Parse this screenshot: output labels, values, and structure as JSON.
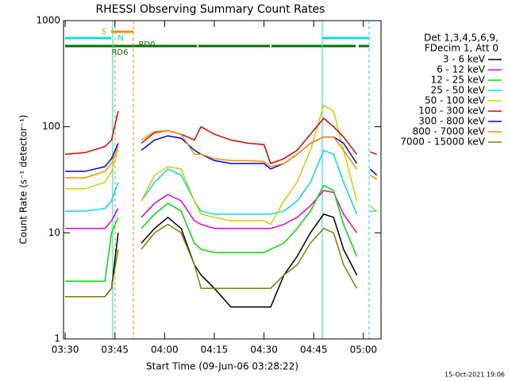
{
  "chart_data": {
    "type": "line",
    "title": "RHESSI Observing Summary Count Rates",
    "xlabel": "Start Time (09-Jun-06 03:28:22)",
    "ylabel": "Count Rate (s⁻¹ detector⁻¹)",
    "legend_title": [
      "Det 1,3,4,5,6,9,",
      "FDecim 1, Att 0"
    ],
    "annotations": [
      "S",
      "N",
      "RD6",
      "RD0"
    ],
    "footer": "15-Oct-2021 19:06",
    "log_y": true,
    "ylim": [
      1,
      1000
    ],
    "yticks": [
      1,
      10,
      100,
      1000
    ],
    "xlim": [
      29.5,
      125.3
    ],
    "xticks": [
      {
        "value": 30,
        "label": "03:30"
      },
      {
        "value": 45,
        "label": "03:45"
      },
      {
        "value": 60,
        "label": "04:00"
      },
      {
        "value": 75,
        "label": "04:15"
      },
      {
        "value": 90,
        "label": "04:30"
      },
      {
        "value": 105,
        "label": "04:45"
      },
      {
        "value": 120,
        "label": "05:00"
      }
    ],
    "x": [
      30,
      36,
      42,
      44,
      46,
      48,
      53,
      57,
      61,
      65,
      69,
      71,
      75,
      80,
      85,
      90,
      92,
      96,
      100,
      104,
      108,
      111,
      114,
      118,
      120,
      122,
      124
    ],
    "series": [
      {
        "name": "3 - 6 keV",
        "color": "#000000",
        "values": [
          2.5,
          2.5,
          2.5,
          3,
          10,
          null,
          8,
          11,
          14,
          11,
          5,
          4,
          3,
          2,
          2,
          2,
          2,
          4,
          6,
          10,
          15,
          14,
          7,
          4,
          null,
          null,
          null
        ]
      },
      {
        "name": "6 - 12 keV",
        "color": "#e000e0",
        "values": [
          11,
          11,
          11,
          13,
          17,
          null,
          14,
          19,
          23,
          20,
          13,
          12,
          11,
          11,
          11,
          11,
          11,
          12,
          14,
          18,
          25,
          24,
          15,
          10,
          null,
          null,
          null
        ]
      },
      {
        "name": "12 - 25 keV",
        "color": "#00e000",
        "values": [
          3.5,
          3.5,
          3.5,
          10,
          14,
          null,
          11,
          15,
          19,
          16,
          8,
          7,
          6.5,
          6.5,
          6.5,
          6.5,
          7,
          8,
          11,
          16,
          28,
          25,
          12,
          6,
          null,
          null,
          null
        ]
      },
      {
        "name": "25 - 50 keV",
        "color": "#00e0e0",
        "values": [
          16,
          16,
          17,
          20,
          30,
          null,
          20,
          30,
          40,
          35,
          20,
          16,
          15,
          15,
          15,
          15,
          15,
          16,
          20,
          30,
          60,
          55,
          30,
          15,
          null,
          16,
          16
        ]
      },
      {
        "name": "50 - 100 keV",
        "color": "#d0d000",
        "values": [
          26,
          26,
          30,
          38,
          60,
          null,
          20,
          35,
          42,
          40,
          20,
          15,
          14,
          13,
          13,
          13,
          12,
          20,
          30,
          60,
          160,
          140,
          60,
          20,
          null,
          18,
          16
        ]
      },
      {
        "name": "100 - 300 keV",
        "color": "#e00000",
        "values": [
          55,
          57,
          65,
          75,
          140,
          null,
          70,
          88,
          92,
          85,
          75,
          100,
          85,
          75,
          70,
          68,
          45,
          50,
          60,
          85,
          120,
          100,
          80,
          55,
          null,
          58,
          55
        ]
      },
      {
        "name": "300 - 800 keV",
        "color": "#0000e0",
        "values": [
          38,
          38,
          42,
          50,
          70,
          null,
          60,
          75,
          82,
          78,
          60,
          55,
          48,
          45,
          45,
          45,
          40,
          45,
          55,
          70,
          80,
          80,
          70,
          45,
          null,
          40,
          35
        ]
      },
      {
        "name": "800 - 7000 keV",
        "color": "#ff8c00",
        "values": [
          33,
          33,
          38,
          45,
          65,
          null,
          75,
          90,
          92,
          85,
          55,
          55,
          50,
          48,
          48,
          47,
          42,
          45,
          55,
          70,
          80,
          80,
          60,
          40,
          null,
          35,
          32
        ]
      },
      {
        "name": "7000 - 15000 keV",
        "color": "#808000",
        "values": [
          2.5,
          2.5,
          2.5,
          3,
          7,
          null,
          7,
          10,
          12,
          10,
          5,
          3,
          3,
          3,
          3,
          3,
          3,
          4,
          5,
          8,
          11,
          10,
          5,
          3,
          null,
          null,
          null
        ]
      }
    ]
  }
}
